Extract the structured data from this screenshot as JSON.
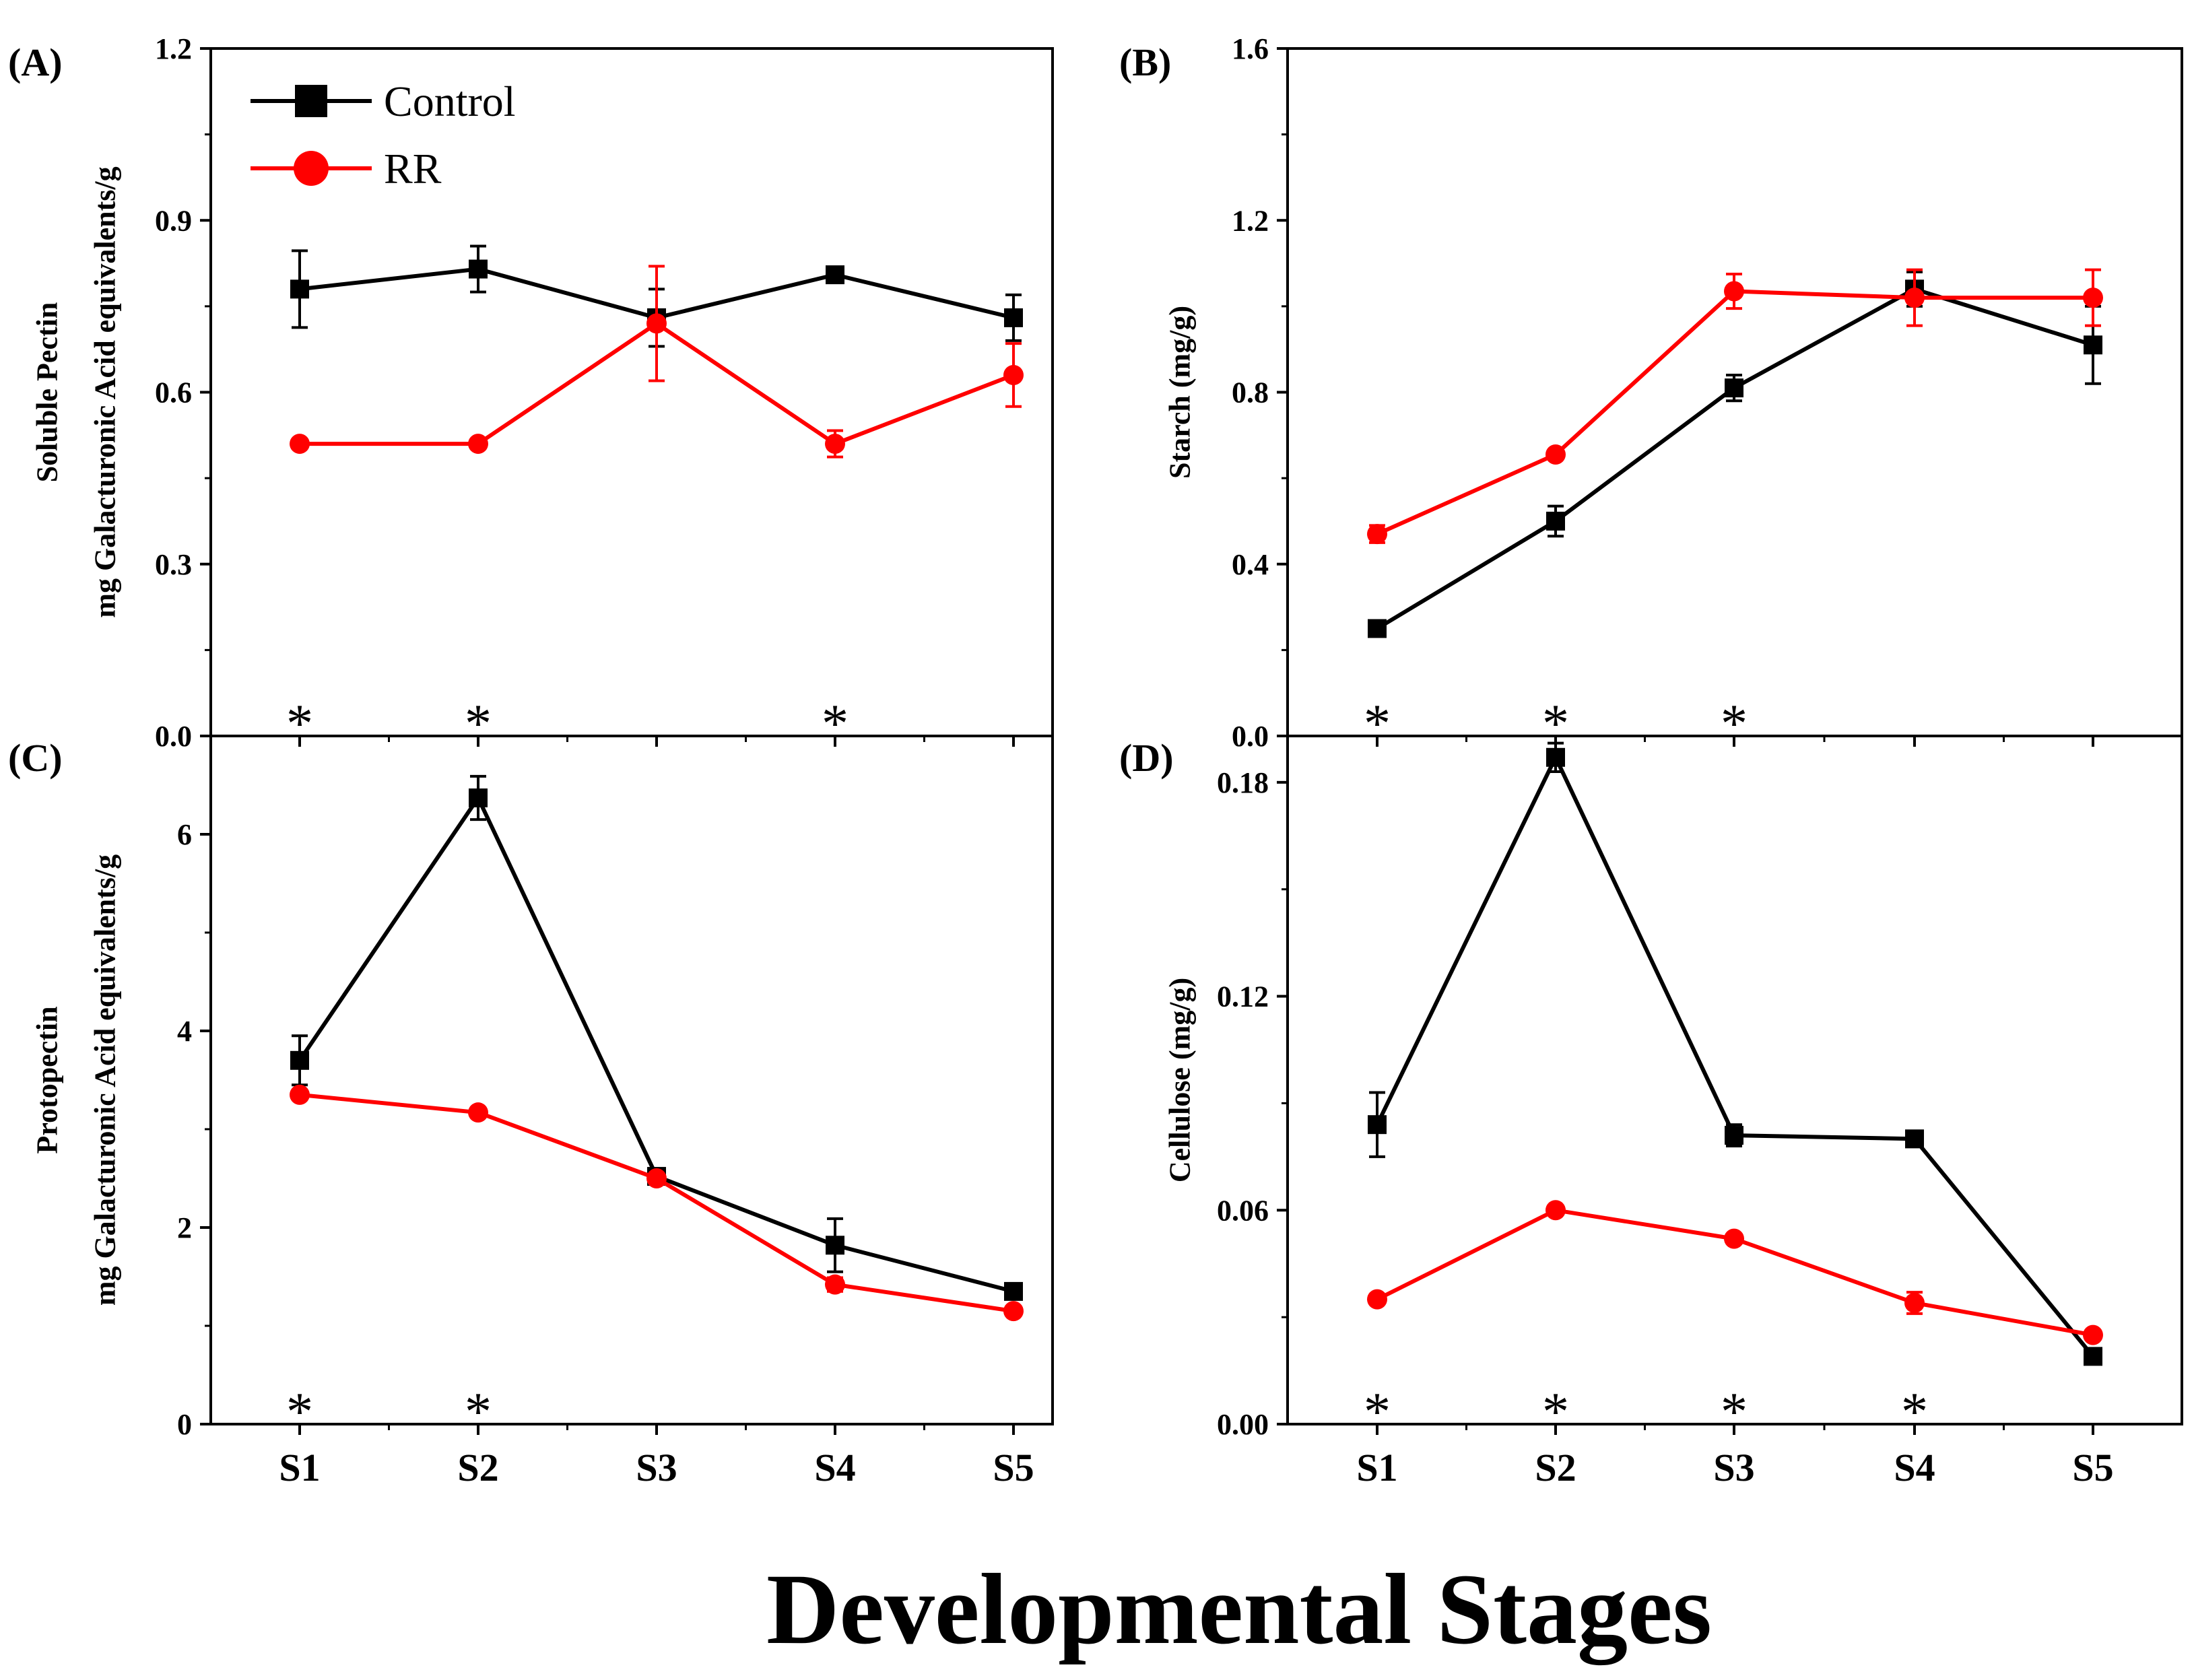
{
  "figure": {
    "xlabel": "Developmental Stages",
    "legend": [
      {
        "name": "Control",
        "color": "#000000",
        "marker": "square"
      },
      {
        "name": "RR",
        "color": "#ff0000",
        "marker": "circle"
      }
    ],
    "significance_marker": "*"
  },
  "chart_data": [
    {
      "type": "line",
      "panel": "(A)",
      "categories": [
        "S1",
        "S2",
        "S3",
        "S4",
        "S5"
      ],
      "ylabel_lines": [
        "Soluble Pectin",
        "mg Galacturonic Acid equivalents/g"
      ],
      "ylim": [
        0,
        1.2
      ],
      "yticks": [
        0.0,
        0.3,
        0.6,
        0.9,
        1.2
      ],
      "ytick_labels": [
        "0.0",
        "0.3",
        "0.6",
        "0.9",
        "1.2"
      ],
      "show_x_tick_labels": false,
      "series": [
        {
          "name": "Control",
          "color": "#000000",
          "marker": "square",
          "values": [
            0.78,
            0.815,
            0.73,
            0.805,
            0.73
          ],
          "errors": [
            0.067,
            0.04,
            0.05,
            0.012,
            0.04
          ]
        },
        {
          "name": "RR",
          "color": "#ff0000",
          "marker": "circle",
          "values": [
            0.51,
            0.51,
            0.72,
            0.51,
            0.63
          ],
          "errors": [
            0.008,
            0.008,
            0.1,
            0.023,
            0.055
          ]
        }
      ],
      "significant": [
        "S1",
        "S2",
        "S4"
      ]
    },
    {
      "type": "line",
      "panel": "(B)",
      "categories": [
        "S1",
        "S2",
        "S3",
        "S4",
        "S5"
      ],
      "ylabel_lines": [
        "Starch (mg/g)"
      ],
      "ylim": [
        0,
        1.6
      ],
      "yticks": [
        0.0,
        0.4,
        0.8,
        1.2,
        1.6
      ],
      "ytick_labels": [
        "0.0",
        "0.4",
        "0.8",
        "1.2",
        "1.6"
      ],
      "show_x_tick_labels": false,
      "series": [
        {
          "name": "Control",
          "color": "#000000",
          "marker": "square",
          "values": [
            0.25,
            0.5,
            0.81,
            1.04,
            0.91
          ],
          "errors": [
            0.015,
            0.035,
            0.03,
            0.04,
            0.09
          ]
        },
        {
          "name": "RR",
          "color": "#ff0000",
          "marker": "circle",
          "values": [
            0.47,
            0.655,
            1.035,
            1.02,
            1.02
          ],
          "errors": [
            0.02,
            0.01,
            0.04,
            0.065,
            0.065
          ]
        }
      ],
      "significant": [
        "S1",
        "S2",
        "S3"
      ]
    },
    {
      "type": "line",
      "panel": "(C)",
      "categories": [
        "S1",
        "S2",
        "S3",
        "S4",
        "S5"
      ],
      "ylabel_lines": [
        "Protopectin",
        "mg Galacturonic Acid equivalents/g"
      ],
      "ylim": [
        0,
        7
      ],
      "yticks": [
        0,
        2,
        4,
        6
      ],
      "ytick_labels": [
        "0",
        "2",
        "4",
        "6"
      ],
      "show_x_tick_labels": true,
      "series": [
        {
          "name": "Control",
          "color": "#000000",
          "marker": "square",
          "values": [
            3.7,
            6.37,
            2.52,
            1.82,
            1.35
          ],
          "errors": [
            0.25,
            0.22,
            0.08,
            0.27,
            0.04
          ]
        },
        {
          "name": "RR",
          "color": "#ff0000",
          "marker": "circle",
          "values": [
            3.35,
            3.17,
            2.5,
            1.42,
            1.15
          ],
          "errors": [
            0.05,
            0.05,
            0.05,
            0.07,
            0.04
          ]
        }
      ],
      "significant": [
        "S1",
        "S2"
      ]
    },
    {
      "type": "line",
      "panel": "(D)",
      "categories": [
        "S1",
        "S2",
        "S3",
        "S4",
        "S5"
      ],
      "ylabel_lines": [
        "Cellulose (mg/g)"
      ],
      "ylim": [
        0,
        0.193
      ],
      "yticks": [
        0.0,
        0.06,
        0.12,
        0.18
      ],
      "ytick_labels": [
        "0.00",
        "0.06",
        "0.12",
        "0.18"
      ],
      "show_x_tick_labels": true,
      "series": [
        {
          "name": "Control",
          "color": "#000000",
          "marker": "square",
          "values": [
            0.084,
            0.187,
            0.081,
            0.08,
            0.019
          ],
          "errors": [
            0.009,
            0.004,
            0.003,
            0.001,
            0.001
          ]
        },
        {
          "name": "RR",
          "color": "#ff0000",
          "marker": "circle",
          "values": [
            0.035,
            0.06,
            0.052,
            0.034,
            0.025
          ],
          "errors": [
            0.001,
            0.001,
            0.001,
            0.003,
            0.001
          ]
        }
      ],
      "significant": [
        "S1",
        "S2",
        "S3",
        "S4"
      ]
    }
  ]
}
